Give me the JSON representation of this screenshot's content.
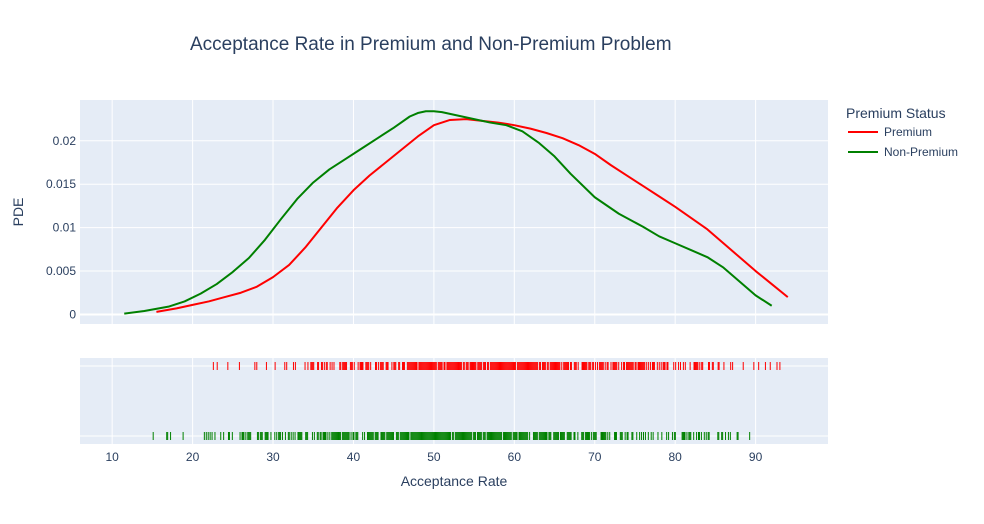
{
  "chart_data": {
    "type": "line",
    "title": "Acceptance Rate in Premium and Non-Premium Problem",
    "xlabel": "Acceptance Rate",
    "ylabel": "PDE",
    "xlim": [
      6,
      99
    ],
    "ylim": [
      -0.0011,
      0.0247
    ],
    "x_ticks": [
      10,
      20,
      30,
      40,
      50,
      60,
      70,
      80,
      90
    ],
    "x_tick_labels": [
      "10",
      "20",
      "30",
      "40",
      "50",
      "60",
      "70",
      "80",
      "90"
    ],
    "y_ticks": [
      0,
      0.005,
      0.01,
      0.015,
      0.02
    ],
    "y_tick_labels": [
      "0",
      "0.005",
      "0.01",
      "0.015",
      "0.02"
    ],
    "grid": true,
    "legend": {
      "title": "Premium Status",
      "position": "right"
    },
    "series": [
      {
        "name": "Premium",
        "color": "#ff0000",
        "x": [
          15.5,
          18,
          20,
          22,
          24,
          26,
          28,
          30,
          32,
          34,
          36,
          38,
          40,
          42,
          44,
          46,
          48,
          50,
          52,
          54,
          56,
          58,
          60,
          62,
          64,
          66,
          68,
          70,
          72,
          74,
          76,
          78,
          80,
          82,
          84,
          86,
          88,
          90,
          92,
          94
        ],
        "y": [
          0.0003,
          0.0007,
          0.0011,
          0.0015,
          0.002,
          0.0025,
          0.0032,
          0.0043,
          0.0057,
          0.0077,
          0.01,
          0.0123,
          0.0143,
          0.016,
          0.0175,
          0.019,
          0.0205,
          0.0218,
          0.0224,
          0.0225,
          0.0223,
          0.0221,
          0.0218,
          0.0214,
          0.0209,
          0.0203,
          0.0195,
          0.0185,
          0.0172,
          0.016,
          0.0148,
          0.0136,
          0.0124,
          0.0111,
          0.0098,
          0.0082,
          0.0066,
          0.005,
          0.0035,
          0.002
        ]
      },
      {
        "name": "Non-Premium",
        "color": "#008000",
        "x": [
          11.5,
          14,
          17,
          19,
          21,
          23,
          25,
          27,
          29,
          31,
          33,
          35,
          37,
          39,
          41,
          43,
          45,
          47,
          48,
          49,
          50,
          51,
          53,
          55,
          57,
          59,
          61,
          63,
          65,
          67,
          70,
          73,
          76,
          78,
          80,
          82,
          84,
          86,
          88,
          90,
          92
        ],
        "y": [
          0.0001,
          0.0004,
          0.0009,
          0.0015,
          0.0024,
          0.0035,
          0.0049,
          0.0065,
          0.0086,
          0.011,
          0.0133,
          0.0152,
          0.0167,
          0.0179,
          0.0191,
          0.0203,
          0.0215,
          0.0228,
          0.0232,
          0.0234,
          0.0234,
          0.0233,
          0.0229,
          0.0225,
          0.0221,
          0.0218,
          0.0211,
          0.0198,
          0.0182,
          0.0162,
          0.0135,
          0.0116,
          0.0101,
          0.009,
          0.0082,
          0.0074,
          0.0066,
          0.0054,
          0.0038,
          0.0022,
          0.001
        ]
      }
    ],
    "rug": {
      "rows": [
        "Premium",
        "Non-Premium"
      ],
      "description_ticks_only": true
    }
  }
}
